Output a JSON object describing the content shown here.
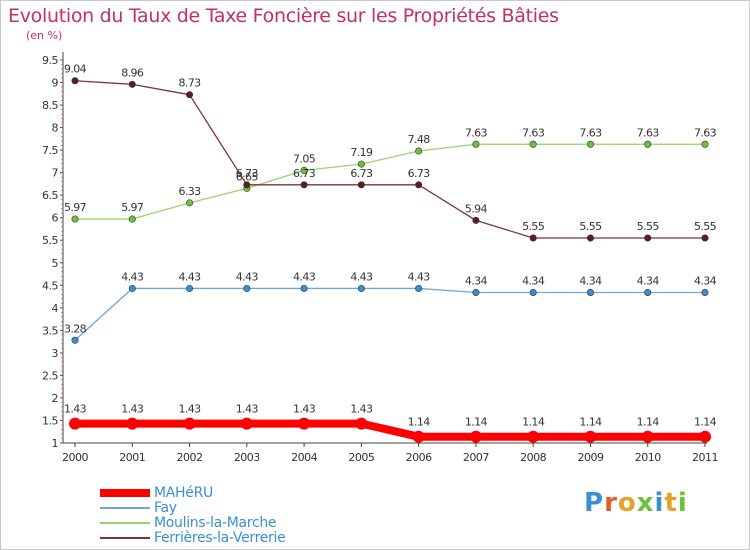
{
  "chart_data": {
    "type": "line",
    "title": "Evolution du Taux de Taxe Foncière sur les Propriétés Bâties",
    "unit_label": "(en %)",
    "xlabel": "",
    "ylabel": "",
    "categories": [
      "2000",
      "2001",
      "2002",
      "2003",
      "2004",
      "2005",
      "2006",
      "2007",
      "2008",
      "2009",
      "2010",
      "2011"
    ],
    "yticks": [
      "1",
      "1.5",
      "2",
      "2.5",
      "3",
      "3.5",
      "4",
      "4.5",
      "5",
      "5.5",
      "6",
      "6.5",
      "7",
      "7.5",
      "8",
      "8.5",
      "9",
      "9.5"
    ],
    "ylim": [
      1,
      9.5
    ],
    "grid": false,
    "legend_position": "bottom-left",
    "series": [
      {
        "name": "MAHéRU",
        "color": "#ff0000",
        "marker_color": "#ff0000",
        "thick": true,
        "values": [
          1.43,
          1.43,
          1.43,
          1.43,
          1.43,
          1.43,
          1.14,
          1.14,
          1.14,
          1.14,
          1.14,
          1.14
        ],
        "labels": [
          "1.43",
          "1.43",
          "1.43",
          "1.43",
          "1.43",
          "1.43",
          "1.14",
          "1.14",
          "1.14",
          "1.14",
          "1.14",
          "1.14"
        ]
      },
      {
        "name": "Fay",
        "color": "#6fa7d6",
        "marker_color": "#3a8fd4",
        "thick": false,
        "values": [
          3.28,
          4.43,
          4.43,
          4.43,
          4.43,
          4.43,
          4.43,
          4.34,
          4.34,
          4.34,
          4.34,
          4.34
        ],
        "labels": [
          "3.28",
          "4.43",
          "4.43",
          "4.43",
          "4.43",
          "4.43",
          "4.43",
          "4.34",
          "4.34",
          "4.34",
          "4.34",
          "4.34"
        ]
      },
      {
        "name": "Moulins-la-Marche",
        "color": "#9ad46a",
        "marker_color": "#6cc23a",
        "thick": false,
        "values": [
          5.97,
          5.97,
          6.33,
          6.65,
          7.05,
          7.19,
          7.48,
          7.63,
          7.63,
          7.63,
          7.63,
          7.63
        ],
        "labels": [
          "5.97",
          "5.97",
          "6.33",
          "6.65",
          "7.05",
          "7.19",
          "7.48",
          "7.63",
          "7.63",
          "7.63",
          "7.63",
          "7.63"
        ]
      },
      {
        "name": "Ferrières-la-Verrerie",
        "color": "#7a3636",
        "marker_color": "#5a1e1e",
        "thick": false,
        "values": [
          9.04,
          8.96,
          8.73,
          6.73,
          6.73,
          6.73,
          6.73,
          5.94,
          5.55,
          5.55,
          5.55,
          5.55
        ],
        "labels": [
          "9.04",
          "8.96",
          "8.73",
          "6.73",
          "6.73",
          "6.73",
          "6.73",
          "5.94",
          "5.55",
          "5.55",
          "5.55",
          "5.55"
        ]
      }
    ]
  },
  "logo": {
    "text": "Proxiti",
    "letter_colors": [
      "#3a8fd4",
      "#e35b2a",
      "#e3a32a",
      "#6cc23a",
      "#3a8fd4",
      "#e3a32a",
      "#6cc23a"
    ]
  }
}
